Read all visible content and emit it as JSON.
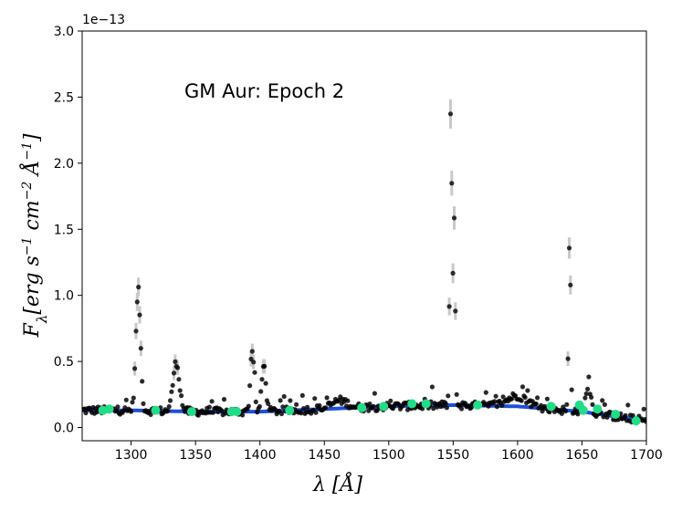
{
  "chart_data": {
    "type": "scatter",
    "title": "GM Aur: Epoch 2",
    "xlabel": "λ [Å]",
    "ylabel": "F_λ [erg s⁻¹ cm⁻² Å⁻¹]",
    "ylabel_parts": {
      "main": "F",
      "sub": "λ",
      "units": "[erg s",
      "exp1": "−1",
      "cm": " cm",
      "exp2": "−2",
      "angstrom": " Å",
      "exp3": "−1",
      "close": "]"
    },
    "offset_label": "1e−13",
    "xlim": [
      1262,
      1700
    ],
    "ylim": [
      -0.1,
      3.0
    ],
    "xticks": [
      1300,
      1350,
      1400,
      1450,
      1500,
      1550,
      1600,
      1650,
      1700
    ],
    "yticks": [
      0.0,
      0.5,
      1.0,
      1.5,
      2.0,
      2.5,
      3.0
    ],
    "ytick_labels": [
      "0.0",
      "0.5",
      "1.0",
      "1.5",
      "2.0",
      "2.5",
      "3.0"
    ],
    "grid": false,
    "colors": {
      "data_points": "#000000",
      "error_bars": "#c8c8c8",
      "continuum_fit": "#1f4fd6",
      "continuum_points": "#22dd88"
    },
    "emission_lines": [
      {
        "center": 1305.5,
        "peak": 1.06,
        "width": 1.8
      },
      {
        "center": 1335.0,
        "peak": 0.52,
        "width": 2.5
      },
      {
        "center": 1394.0,
        "peak": 0.63,
        "width": 1.4
      },
      {
        "center": 1403.0,
        "peak": 0.5,
        "width": 1.6
      },
      {
        "center": 1548.2,
        "peak": 2.45,
        "width": 0.8
      },
      {
        "center": 1550.8,
        "peak": 1.58,
        "width": 0.8
      },
      {
        "center": 1640.4,
        "peak": 1.46,
        "width": 0.8
      },
      {
        "center": 1655.0,
        "peak": 0.35,
        "width": 2.0
      }
    ],
    "continuum_fit": {
      "x": [
        1262,
        1300,
        1350,
        1400,
        1450,
        1500,
        1550,
        1600,
        1650,
        1700
      ],
      "y": [
        0.13,
        0.13,
        0.12,
        0.12,
        0.14,
        0.16,
        0.17,
        0.16,
        0.12,
        0.05
      ]
    },
    "continuum_points": {
      "x": [
        1278,
        1283,
        1319,
        1347,
        1378,
        1382,
        1423,
        1479,
        1496,
        1518,
        1529,
        1569,
        1626,
        1648,
        1651,
        1662,
        1676,
        1692
      ],
      "y": [
        0.13,
        0.14,
        0.13,
        0.12,
        0.12,
        0.12,
        0.13,
        0.15,
        0.16,
        0.18,
        0.18,
        0.17,
        0.16,
        0.17,
        0.13,
        0.14,
        0.1,
        0.05
      ]
    }
  }
}
